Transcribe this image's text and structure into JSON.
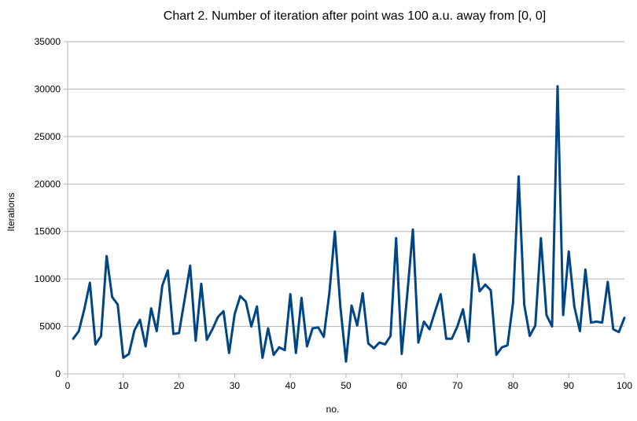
{
  "chart_data": {
    "type": "line",
    "title": "Chart 2. Number of iteration after point was 100 a.u. away from [0, 0]",
    "xlabel": "no.",
    "ylabel": "Iterations",
    "xlim": [
      0,
      100
    ],
    "ylim": [
      0,
      35000
    ],
    "x_ticks": [
      "0",
      "10",
      "20",
      "30",
      "40",
      "50",
      "60",
      "70",
      "80",
      "90",
      "100"
    ],
    "y_ticks": [
      "0",
      "5000",
      "10000",
      "15000",
      "20000",
      "25000",
      "30000",
      "35000"
    ],
    "grid": "horizontal",
    "legend": "none",
    "colors": {
      "line": "#004586",
      "grid": "#b3b3b3",
      "axis": "#b3b3b3"
    },
    "series": [
      {
        "x": [
          1,
          2,
          3,
          4,
          5,
          6,
          7,
          8,
          9,
          10,
          11,
          12,
          13,
          14,
          15,
          16,
          17,
          18,
          19,
          20,
          21,
          22,
          23,
          24,
          25,
          26,
          27,
          28,
          29,
          30,
          31,
          32,
          33,
          34,
          35,
          36,
          37,
          38,
          39,
          40,
          41,
          42,
          43,
          44,
          45,
          46,
          47,
          48,
          49,
          50,
          51,
          52,
          53,
          54,
          55,
          56,
          57,
          58,
          59,
          60,
          61,
          62,
          63,
          64,
          65,
          66,
          67,
          68,
          69,
          70,
          71,
          72,
          73,
          74,
          75,
          76,
          77,
          78,
          79,
          80,
          81,
          82,
          83,
          84,
          85,
          86,
          87,
          88,
          89,
          90,
          91,
          92,
          93,
          94,
          95,
          96,
          97,
          98,
          99,
          100
        ],
        "values": [
          3700,
          4500,
          6800,
          9600,
          3100,
          4000,
          12400,
          8100,
          7300,
          1700,
          2100,
          4600,
          5700,
          2900,
          6900,
          4500,
          9300,
          10900,
          4200,
          4300,
          7800,
          11400,
          3500,
          9500,
          3600,
          4700,
          6000,
          6600,
          2200,
          6300,
          8200,
          7600,
          5000,
          7100,
          1700,
          4800,
          2000,
          2800,
          2500,
          8400,
          2200,
          8000,
          2900,
          4800,
          4900,
          3900,
          8500,
          15000,
          7000,
          1300,
          7200,
          5100,
          8500,
          3200,
          2700,
          3300,
          3100,
          4000,
          14300,
          2100,
          8400,
          15200,
          3300,
          5500,
          4700,
          6600,
          8400,
          3700,
          3700,
          5000,
          6800,
          3400,
          12600,
          8700,
          9400,
          8800,
          2000,
          2800,
          3000,
          7500,
          20800,
          7300,
          4000,
          5100,
          14300,
          6200,
          5000,
          30300,
          6200,
          12900,
          7100,
          4500,
          11000,
          5400,
          5500,
          5400,
          9700,
          4700,
          4400,
          5900
        ]
      }
    ]
  }
}
